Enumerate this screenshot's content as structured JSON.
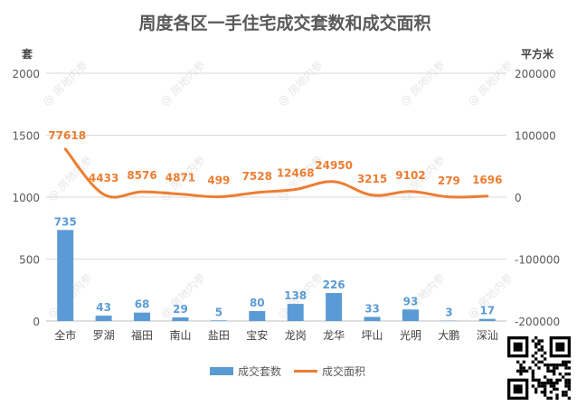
{
  "chart_data": {
    "type": "bar",
    "title": "周度各区一手住宅成交套数和成交面积",
    "categories": [
      "全市",
      "罗湖",
      "福田",
      "南山",
      "盐田",
      "宝安",
      "龙岗",
      "龙华",
      "坪山",
      "光明",
      "大鹏",
      "深汕"
    ],
    "series": [
      {
        "name": "成交套数",
        "type": "bar",
        "axis": "left",
        "color": "#5b9bd5",
        "values": [
          735,
          43,
          68,
          29,
          5,
          80,
          138,
          226,
          33,
          93,
          3,
          17
        ]
      },
      {
        "name": "成交面积",
        "type": "line",
        "axis": "right",
        "color": "#ed7d31",
        "values": [
          77618,
          4433,
          8576,
          4871,
          499,
          7528,
          12468,
          24950,
          3215,
          9102,
          279,
          1696
        ]
      }
    ],
    "y_left": {
      "label": "套",
      "ylim": [
        0,
        2000
      ],
      "ticks": [
        "0",
        "500",
        "1000",
        "1500",
        "2000"
      ]
    },
    "y_right": {
      "label": "平方米",
      "ylim": [
        -200000,
        200000
      ],
      "ticks": [
        "-200000",
        "-100000",
        "0",
        "100000",
        "200000"
      ]
    },
    "grid": true,
    "legend": "bottom",
    "watermark": "房地内参"
  }
}
